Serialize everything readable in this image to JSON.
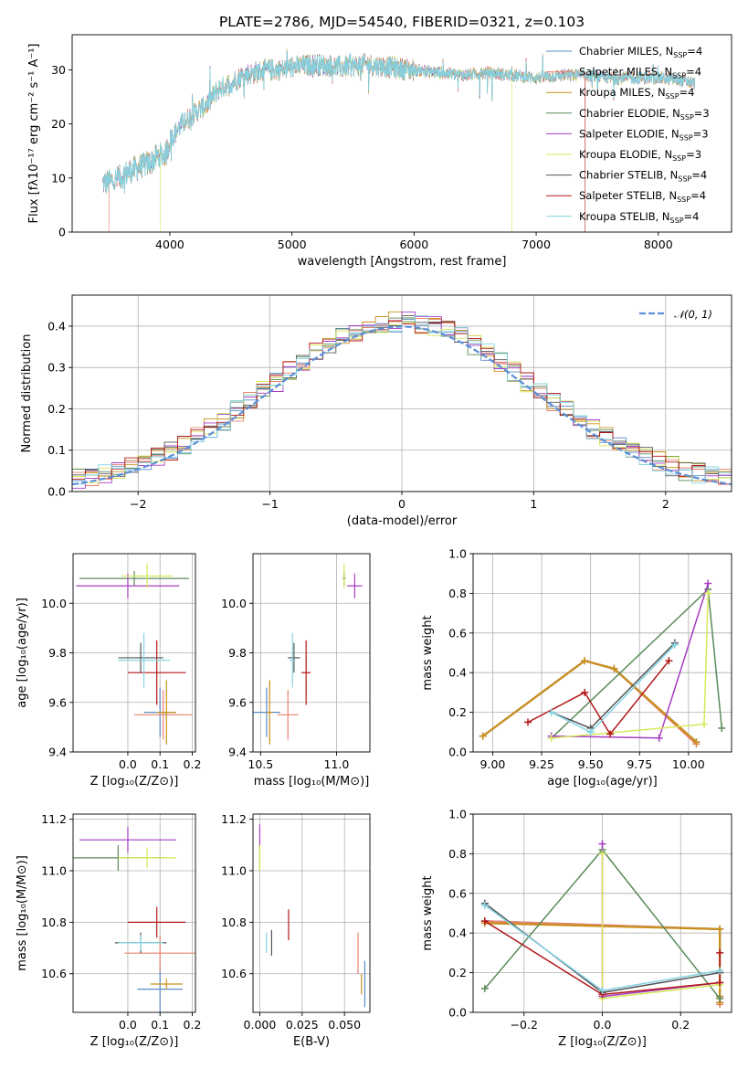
{
  "figure_title": "PLATE=2786, MJD=54540, FIBERID=0321, z=0.103",
  "colors": {
    "Chabrier MILES": "#5b8cc4",
    "Salpeter MILES": "#e8836f",
    "Kroupa MILES": "#c8901c",
    "Chabrier ELODIE": "#5a8a5a",
    "Salpeter ELODIE": "#a73cc3",
    "Kroupa ELODIE": "#d6e85a",
    "Chabrier STELIB": "#555555",
    "Salpeter STELIB": "#b21818",
    "Kroupa STELIB": "#83d4e4",
    "normal": "#5b8fd8",
    "grid": "#b0b0b0"
  },
  "chart_data": [
    {
      "id": "spectrum",
      "type": "line",
      "xlabel": "wavelength [Angstrom, rest frame]",
      "ylabel": "Flux [fλ10⁻¹⁷ erg cm⁻² s⁻¹ A⁻¹]",
      "xlim": [
        3200,
        8600
      ],
      "ylim": [
        0,
        36.5
      ],
      "xticks": [
        4000,
        5000,
        6000,
        7000,
        8000
      ],
      "yticks": [
        0,
        10,
        20,
        30
      ],
      "grid": false,
      "legend_position": "top-right",
      "legend": [
        {
          "series": "Chabrier MILES",
          "label": "Chabrier MILES, N",
          "nssp": 4
        },
        {
          "series": "Salpeter MILES",
          "label": "Salpeter MILES, N",
          "nssp": 4
        },
        {
          "series": "Kroupa MILES",
          "label": "Kroupa MILES, N",
          "nssp": 4
        },
        {
          "series": "Chabrier ELODIE",
          "label": "Chabrier ELODIE, N",
          "nssp": 3
        },
        {
          "series": "Salpeter ELODIE",
          "label": "Salpeter ELODIE, N",
          "nssp": 3
        },
        {
          "series": "Kroupa ELODIE",
          "label": "Kroupa ELODIE, N",
          "nssp": 3
        },
        {
          "series": "Chabrier STELIB",
          "label": "Chabrier STELIB, N",
          "nssp": 4
        },
        {
          "series": "Salpeter STELIB",
          "label": "Salpeter STELIB, N",
          "nssp": 4
        },
        {
          "series": "Kroupa STELIB",
          "label": "Kroupa STELIB, N",
          "nssp": 4
        }
      ],
      "legend_subscript": "SSP",
      "continuum": {
        "wavelength": [
          3450,
          3550,
          3650,
          3750,
          3850,
          3900,
          3970,
          4000,
          4100,
          4200,
          4300,
          4400,
          4500,
          4600,
          4700,
          4800,
          4900,
          5000,
          5200,
          5400,
          5600,
          5800,
          6000,
          6200,
          6400,
          6600,
          6800,
          7000,
          7200,
          7400,
          7600,
          7800,
          8000,
          8200,
          8300
        ],
        "flux": [
          9,
          9.5,
          11,
          12,
          13,
          14,
          14.5,
          17,
          20,
          22,
          23.5,
          26.5,
          27.5,
          29,
          29.5,
          30,
          30,
          30.5,
          31,
          30.5,
          31,
          30.5,
          30,
          29.5,
          29,
          29.5,
          29,
          28.5,
          29,
          29,
          28.5,
          28.5,
          28.5,
          28,
          27.5
        ]
      },
      "spectrum_start": 3450,
      "spectrum_end": 8300,
      "dropouts": [
        {
          "series": "Salpeter MILES",
          "x": 3500
        },
        {
          "series": "Kroupa ELODIE",
          "x": 3920
        },
        {
          "series": "Kroupa ELODIE",
          "x": 6800
        },
        {
          "series": "Salpeter STELIB",
          "x": 7400
        }
      ]
    },
    {
      "id": "residuals",
      "type": "histogram",
      "xlabel": "(data-model)/error",
      "ylabel": "Normed distribution",
      "xlim": [
        -2.5,
        2.5
      ],
      "ylim": [
        0,
        0.475
      ],
      "xticks": [
        -2,
        -1,
        0,
        1,
        2
      ],
      "yticks": [
        0.0,
        0.1,
        0.2,
        0.3,
        0.4
      ],
      "grid": true,
      "bin_width": 0.1,
      "legend_position": "top-right",
      "normal_label": "𝒩(0, 1)",
      "n_bins": 50
    },
    {
      "id": "age_vs_Z",
      "type": "scatter",
      "xlabel": "Z [log₁₀(Z/Z⊙)]",
      "ylabel": "age  [log₁₀(age/yr)]",
      "xlim": [
        -0.17,
        0.21
      ],
      "ylim": [
        9.4,
        10.2
      ],
      "xticks": [
        0.0,
        0.1,
        0.2
      ],
      "yticks": [
        9.4,
        9.6,
        9.8,
        10.0
      ],
      "grid": true,
      "points": [
        {
          "series": "Chabrier MILES",
          "x": 0.1,
          "xerr": 0.05,
          "y": 9.56,
          "yerr": 0.1
        },
        {
          "series": "Salpeter MILES",
          "x": 0.11,
          "xerr": 0.09,
          "y": 9.55,
          "yerr": 0.1
        },
        {
          "series": "Kroupa MILES",
          "x": 0.12,
          "xerr": 0.03,
          "y": 9.56,
          "yerr": 0.13
        },
        {
          "series": "Chabrier ELODIE",
          "x": 0.02,
          "xerr": 0.17,
          "y": 10.1,
          "yerr": 0.03
        },
        {
          "series": "Salpeter ELODIE",
          "x": 0.0,
          "xerr": 0.16,
          "y": 10.07,
          "yerr": 0.05
        },
        {
          "series": "Kroupa ELODIE",
          "x": 0.06,
          "xerr": 0.08,
          "y": 10.11,
          "yerr": 0.05
        },
        {
          "series": "Chabrier STELIB",
          "x": 0.04,
          "xerr": 0.07,
          "y": 9.78,
          "yerr": 0.06
        },
        {
          "series": "Salpeter STELIB",
          "x": 0.09,
          "xerr": 0.09,
          "y": 9.72,
          "yerr": 0.13
        },
        {
          "series": "Kroupa STELIB",
          "x": 0.05,
          "xerr": 0.08,
          "y": 9.77,
          "yerr": 0.11
        }
      ]
    },
    {
      "id": "age_vs_mass",
      "type": "scatter",
      "xlabel": "mass [log₁₀(M/M⊙)]",
      "ylabel": "",
      "xlim": [
        10.45,
        11.22
      ],
      "ylim": [
        9.4,
        10.2
      ],
      "xticks": [
        10.5,
        11.0
      ],
      "yticks": [
        9.4,
        9.6,
        9.8,
        10.0
      ],
      "grid": true,
      "points": [
        {
          "series": "Chabrier MILES",
          "x": 10.54,
          "xerr": 0.09,
          "y": 9.56,
          "yerr": 0.1
        },
        {
          "series": "Salpeter MILES",
          "x": 10.68,
          "xerr": 0.07,
          "y": 9.55,
          "yerr": 0.1
        },
        {
          "series": "Kroupa MILES",
          "x": 10.56,
          "xerr": 0.02,
          "y": 9.56,
          "yerr": 0.13
        },
        {
          "series": "Chabrier ELODIE",
          "x": 11.05,
          "xerr": 0.01,
          "y": 10.1,
          "yerr": 0.03
        },
        {
          "series": "Salpeter ELODIE",
          "x": 11.12,
          "xerr": 0.05,
          "y": 10.07,
          "yerr": 0.05
        },
        {
          "series": "Kroupa ELODIE",
          "x": 11.05,
          "xerr": 0.01,
          "y": 10.11,
          "yerr": 0.05
        },
        {
          "series": "Chabrier STELIB",
          "x": 10.72,
          "xerr": 0.04,
          "y": 9.78,
          "yerr": 0.06
        },
        {
          "series": "Salpeter STELIB",
          "x": 10.8,
          "xerr": 0.03,
          "y": 9.72,
          "yerr": 0.13
        },
        {
          "series": "Kroupa STELIB",
          "x": 10.71,
          "xerr": 0.02,
          "y": 9.77,
          "yerr": 0.11
        }
      ]
    },
    {
      "id": "weight_vs_age",
      "type": "line",
      "xlabel": "age  [log₁₀(age/yr)]",
      "ylabel": "mass weight",
      "xlim": [
        8.9,
        10.22
      ],
      "ylim": [
        0.0,
        1.0
      ],
      "xticks": [
        9.0,
        9.25,
        9.5,
        9.75,
        10.0
      ],
      "yticks": [
        0.0,
        0.2,
        0.4,
        0.6,
        0.8,
        1.0
      ],
      "grid": true,
      "series": [
        {
          "series": "Chabrier MILES",
          "x": [
            8.95,
            9.47,
            9.62,
            10.04
          ],
          "y": [
            0.08,
            0.46,
            0.42,
            0.05
          ]
        },
        {
          "series": "Salpeter MILES",
          "x": [
            8.95,
            9.47,
            9.62,
            10.04
          ],
          "y": [
            0.08,
            0.46,
            0.42,
            0.04
          ]
        },
        {
          "series": "Kroupa MILES",
          "x": [
            8.95,
            9.47,
            9.62,
            10.04
          ],
          "y": [
            0.08,
            0.46,
            0.42,
            0.05
          ]
        },
        {
          "series": "Chabrier ELODIE",
          "x": [
            9.3,
            10.1,
            10.17
          ],
          "y": [
            0.07,
            0.82,
            0.12
          ]
        },
        {
          "series": "Salpeter ELODIE",
          "x": [
            9.3,
            9.85,
            10.1
          ],
          "y": [
            0.08,
            0.07,
            0.85
          ]
        },
        {
          "series": "Kroupa ELODIE",
          "x": [
            9.3,
            10.08,
            10.1
          ],
          "y": [
            0.07,
            0.14,
            0.8
          ]
        },
        {
          "series": "Chabrier STELIB",
          "x": [
            9.3,
            9.5,
            9.93
          ],
          "y": [
            0.2,
            0.12,
            0.55
          ]
        },
        {
          "series": "Salpeter STELIB",
          "x": [
            9.18,
            9.47,
            9.6,
            9.9
          ],
          "y": [
            0.15,
            0.3,
            0.09,
            0.46
          ]
        },
        {
          "series": "Kroupa STELIB",
          "x": [
            9.3,
            9.5,
            9.93
          ],
          "y": [
            0.2,
            0.1,
            0.54
          ]
        }
      ]
    },
    {
      "id": "mass_vs_Z",
      "type": "scatter",
      "xlabel": "Z [log₁₀(Z/Z⊙)]",
      "ylabel": "mass [log₁₀(M/M⊙)]",
      "xlim": [
        -0.17,
        0.21
      ],
      "ylim": [
        10.45,
        11.22
      ],
      "xticks": [
        0.0,
        0.1,
        0.2
      ],
      "yticks": [
        10.6,
        10.8,
        11.0,
        11.2
      ],
      "grid": true,
      "points": [
        {
          "series": "Chabrier MILES",
          "x": 0.1,
          "xerr": 0.07,
          "y": 10.54,
          "yerr": 0.09
        },
        {
          "series": "Salpeter MILES",
          "x": 0.1,
          "xerr": 0.11,
          "y": 10.68,
          "yerr": 0.07
        },
        {
          "series": "Kroupa MILES",
          "x": 0.12,
          "xerr": 0.05,
          "y": 10.56,
          "yerr": 0.02
        },
        {
          "series": "Chabrier ELODIE",
          "x": -0.03,
          "xerr": 0.15,
          "y": 11.05,
          "yerr": 0.05
        },
        {
          "series": "Salpeter ELODIE",
          "x": 0.0,
          "xerr": 0.15,
          "y": 11.12,
          "yerr": 0.05
        },
        {
          "series": "Kroupa ELODIE",
          "x": 0.06,
          "xerr": 0.09,
          "y": 11.05,
          "yerr": 0.04
        },
        {
          "series": "Chabrier STELIB",
          "x": 0.04,
          "xerr": 0.08,
          "y": 10.72,
          "yerr": 0.04
        },
        {
          "series": "Salpeter STELIB",
          "x": 0.09,
          "xerr": 0.09,
          "y": 10.8,
          "yerr": 0.06
        },
        {
          "series": "Kroupa STELIB",
          "x": 0.04,
          "xerr": 0.07,
          "y": 10.72,
          "yerr": 0.03
        }
      ]
    },
    {
      "id": "mass_vs_ebv",
      "type": "scatter",
      "xlabel": "E(B-V)",
      "ylabel": "",
      "xlim": [
        -0.004,
        0.065
      ],
      "ylim": [
        10.45,
        11.22
      ],
      "xticks": [
        0.0,
        0.025,
        0.05
      ],
      "yticks": [
        10.6,
        10.8,
        11.0,
        11.2
      ],
      "grid": true,
      "points": [
        {
          "series": "Chabrier MILES",
          "x": 0.062,
          "xerr": 0,
          "y": 10.56,
          "yerr": 0.09
        },
        {
          "series": "Salpeter MILES",
          "x": 0.058,
          "xerr": 0,
          "y": 10.68,
          "yerr": 0.08
        },
        {
          "series": "Kroupa MILES",
          "x": 0.06,
          "xerr": 0,
          "y": 10.56,
          "yerr": 0.04
        },
        {
          "series": "Chabrier ELODIE",
          "x": 0.0,
          "xerr": 0,
          "y": 11.05,
          "yerr": 0.05
        },
        {
          "series": "Salpeter ELODIE",
          "x": 0.0,
          "xerr": 0,
          "y": 11.13,
          "yerr": 0.05
        },
        {
          "series": "Kroupa ELODIE",
          "x": 0.0,
          "xerr": 0,
          "y": 11.05,
          "yerr": 0.05
        },
        {
          "series": "Chabrier STELIB",
          "x": 0.007,
          "xerr": 0,
          "y": 10.72,
          "yerr": 0.05
        },
        {
          "series": "Salpeter STELIB",
          "x": 0.017,
          "xerr": 0,
          "y": 10.79,
          "yerr": 0.06
        },
        {
          "series": "Kroupa STELIB",
          "x": 0.004,
          "xerr": 0,
          "y": 10.72,
          "yerr": 0.04
        }
      ]
    },
    {
      "id": "weight_vs_Z",
      "type": "line",
      "xlabel": "Z [log₁₀(Z/Z⊙)]",
      "ylabel": "mass weight",
      "xlim": [
        -0.33,
        0.33
      ],
      "ylim": [
        0.0,
        1.0
      ],
      "xticks": [
        -0.2,
        0.0,
        0.2
      ],
      "yticks": [
        0.0,
        0.2,
        0.4,
        0.6,
        0.8,
        1.0
      ],
      "grid": true,
      "series": [
        {
          "series": "Chabrier MILES",
          "x": [
            -0.3,
            0.3,
            0.3,
            0.3
          ],
          "y": [
            0.46,
            0.42,
            0.08,
            0.05
          ]
        },
        {
          "series": "Salpeter MILES",
          "x": [
            -0.3,
            0.3,
            0.3,
            0.3
          ],
          "y": [
            0.46,
            0.42,
            0.08,
            0.04
          ]
        },
        {
          "series": "Kroupa MILES",
          "x": [
            -0.3,
            0.3,
            0.3,
            0.3
          ],
          "y": [
            0.45,
            0.42,
            0.08,
            0.05
          ]
        },
        {
          "series": "Chabrier ELODIE",
          "x": [
            -0.3,
            0.0,
            0.3
          ],
          "y": [
            0.12,
            0.82,
            0.07
          ]
        },
        {
          "series": "Salpeter ELODIE",
          "x": [
            0.0,
            0.0,
            0.3
          ],
          "y": [
            0.85,
            0.08,
            0.15
          ]
        },
        {
          "series": "Kroupa ELODIE",
          "x": [
            0.0,
            0.0,
            0.3
          ],
          "y": [
            0.8,
            0.07,
            0.14
          ]
        },
        {
          "series": "Chabrier STELIB",
          "x": [
            -0.3,
            0.0,
            0.3
          ],
          "y": [
            0.55,
            0.1,
            0.2
          ]
        },
        {
          "series": "Salpeter STELIB",
          "x": [
            -0.3,
            0.0,
            0.3,
            0.3
          ],
          "y": [
            0.46,
            0.09,
            0.15,
            0.3
          ]
        },
        {
          "series": "Kroupa STELIB",
          "x": [
            -0.3,
            0.0,
            0.3
          ],
          "y": [
            0.54,
            0.11,
            0.21
          ]
        }
      ]
    }
  ]
}
